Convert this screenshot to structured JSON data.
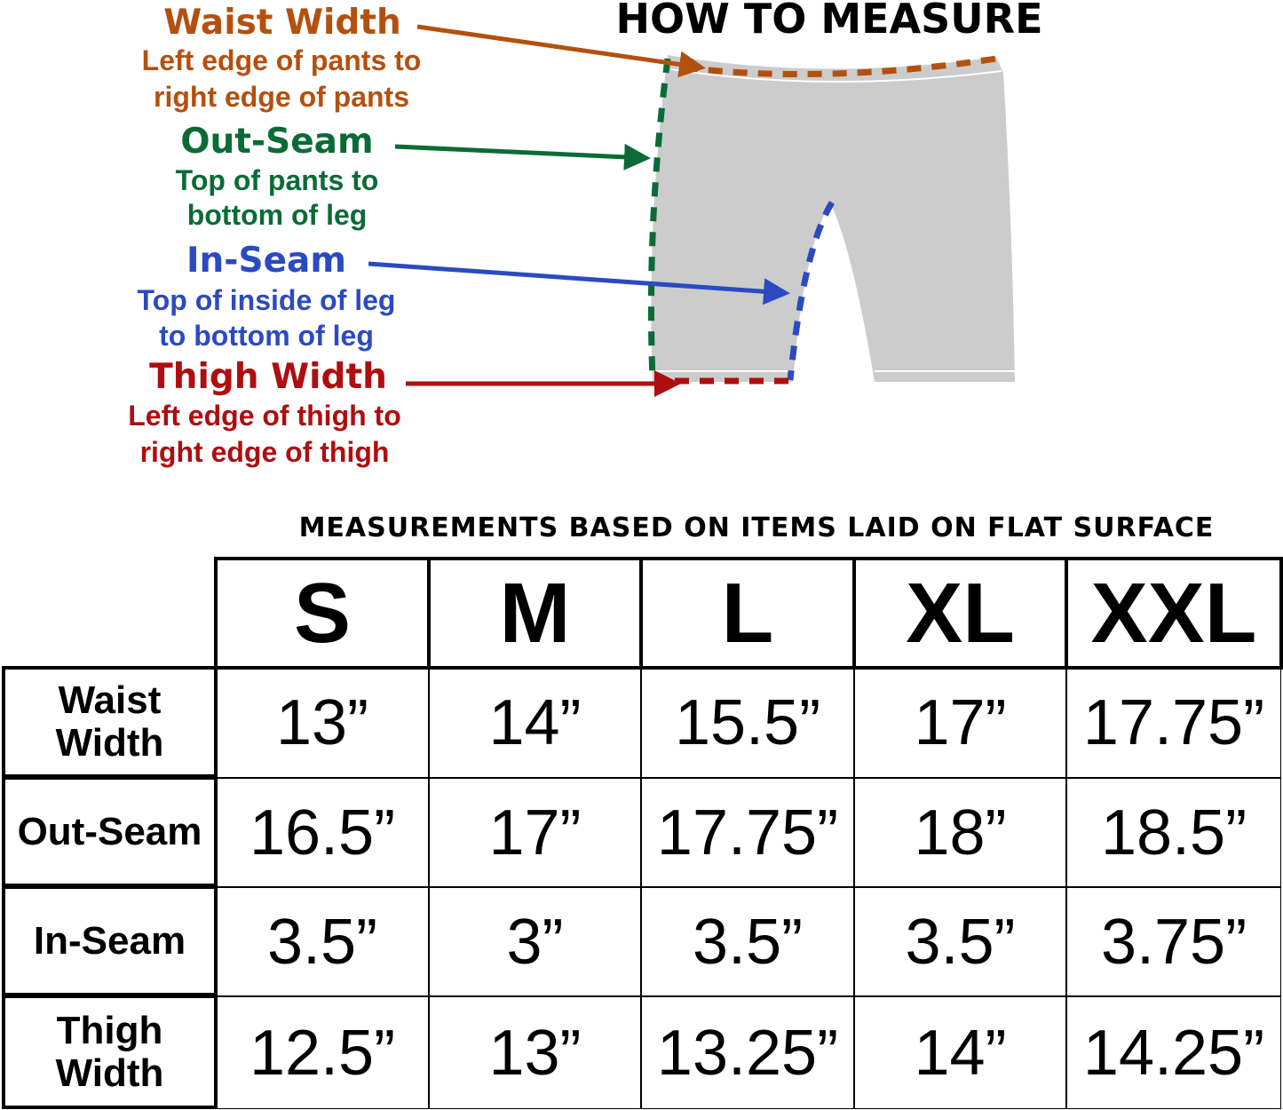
{
  "title": "HOW TO MEASURE",
  "colors": {
    "waist": "#b4500f",
    "outseam": "#0b6b36",
    "inseam": "#2c4ac0",
    "thigh": "#ae0e10",
    "pants_fill": "#cccccc"
  },
  "guide": [
    {
      "name": "Waist Width",
      "desc1": "Left edge of pants to",
      "desc2": "right edge of pants"
    },
    {
      "name": "Out-Seam",
      "desc1": "Top of pants to",
      "desc2": "bottom of leg"
    },
    {
      "name": "In-Seam",
      "desc1": "Top of inside of leg",
      "desc2": "to bottom of leg"
    },
    {
      "name": "Thigh Width",
      "desc1": "Left edge of thigh to",
      "desc2": "right edge of thigh"
    }
  ],
  "subtitle": "MEASUREMENTS BASED ON ITEMS LAID ON FLAT SURFACE",
  "table": {
    "sizes": [
      "S",
      "M",
      "L",
      "XL",
      "XXL"
    ],
    "rows": [
      {
        "label1": "Waist",
        "label2": "Width",
        "values": [
          "13”",
          "14”",
          "15.5”",
          "17”",
          "17.75”"
        ]
      },
      {
        "label1": "Out-Seam",
        "label2": "",
        "values": [
          "16.5”",
          "17”",
          "17.75”",
          "18”",
          "18.5”"
        ]
      },
      {
        "label1": "In-Seam",
        "label2": "",
        "values": [
          "3.5”",
          "3”",
          "3.5”",
          "3.5”",
          "3.75”"
        ]
      },
      {
        "label1": "Thigh",
        "label2": "Width",
        "values": [
          "12.5”",
          "13”",
          "13.25”",
          "14”",
          "14.25”"
        ]
      }
    ]
  }
}
